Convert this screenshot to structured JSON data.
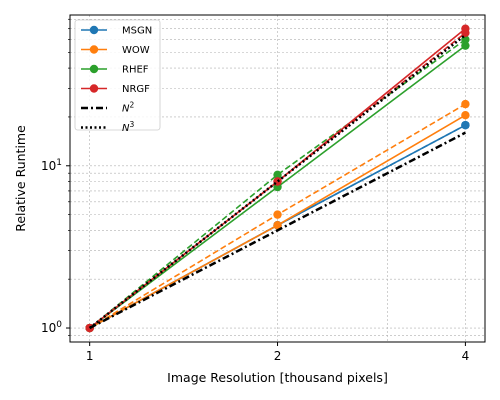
{
  "chart_data": {
    "type": "line",
    "xlabel": "Image Resolution [thousand pixels]",
    "ylabel": "Relative Runtime",
    "xscale": "log",
    "yscale": "log",
    "xlim": [
      0.93,
      4.3
    ],
    "ylim": [
      0.82,
      85
    ],
    "xticks": [
      1,
      2,
      4
    ],
    "xtick_labels": [
      "1",
      "2",
      "4"
    ],
    "yticks": [
      1,
      10
    ],
    "ytick_labels": [
      "10^0",
      "10^1"
    ],
    "grid": true,
    "legend_position": "upper left",
    "series": [
      {
        "name": "MSGN",
        "color": "#1f77b4",
        "style": "solid",
        "marker": "circle",
        "x": [
          1,
          2,
          4
        ],
        "y": [
          1.0,
          4.3,
          17.8
        ]
      },
      {
        "name": "MSGN",
        "color": "#1f77b4",
        "style": "dashed",
        "marker": "circle",
        "x": [
          1,
          2,
          4
        ],
        "y": [
          1.0,
          4.3,
          17.8
        ],
        "legend": false
      },
      {
        "name": "WOW",
        "color": "#ff7f0e",
        "style": "solid",
        "marker": "circle",
        "x": [
          1,
          2,
          4
        ],
        "y": [
          1.0,
          4.3,
          20.5
        ]
      },
      {
        "name": "WOW",
        "color": "#ff7f0e",
        "style": "dashed",
        "marker": "circle",
        "x": [
          1,
          2,
          4
        ],
        "y": [
          1.0,
          5.0,
          24.0
        ],
        "legend": false
      },
      {
        "name": "RHEF",
        "color": "#2ca02c",
        "style": "solid",
        "marker": "circle",
        "x": [
          1,
          2,
          4
        ],
        "y": [
          1.0,
          7.4,
          55.0
        ]
      },
      {
        "name": "RHEF",
        "color": "#2ca02c",
        "style": "dashed",
        "marker": "circle",
        "x": [
          1,
          2,
          4
        ],
        "y": [
          1.0,
          8.8,
          60.0
        ],
        "legend": false
      },
      {
        "name": "NRGF",
        "color": "#d62728",
        "style": "solid",
        "marker": "circle",
        "x": [
          1,
          2,
          4
        ],
        "y": [
          1.0,
          8.0,
          70.0
        ]
      },
      {
        "name": "NRGF",
        "color": "#d62728",
        "style": "dashed",
        "marker": "circle",
        "x": [
          1,
          2,
          4
        ],
        "y": [
          1.0,
          8.0,
          66.0
        ],
        "legend": false
      },
      {
        "name": "N^2",
        "color": "#000000",
        "style": "dashdot",
        "marker": "none",
        "x": [
          1,
          2,
          4
        ],
        "y": [
          1.0,
          4.0,
          16.0
        ]
      },
      {
        "name": "N^3",
        "color": "#000000",
        "style": "dotted",
        "marker": "none",
        "x": [
          1,
          2,
          4
        ],
        "y": [
          1.0,
          8.0,
          64.0
        ]
      }
    ],
    "legend": [
      {
        "label": "MSGN",
        "color": "#1f77b4",
        "style": "solid",
        "marker": "circle"
      },
      {
        "label": "WOW",
        "color": "#ff7f0e",
        "style": "solid",
        "marker": "circle"
      },
      {
        "label": "RHEF",
        "color": "#2ca02c",
        "style": "solid",
        "marker": "circle"
      },
      {
        "label": "NRGF",
        "color": "#d62728",
        "style": "solid",
        "marker": "circle"
      },
      {
        "base": "N",
        "exp": "2",
        "color": "#000000",
        "style": "dashdot",
        "marker": "none"
      },
      {
        "base": "N",
        "exp": "3",
        "color": "#000000",
        "style": "dotted",
        "marker": "none"
      }
    ]
  }
}
